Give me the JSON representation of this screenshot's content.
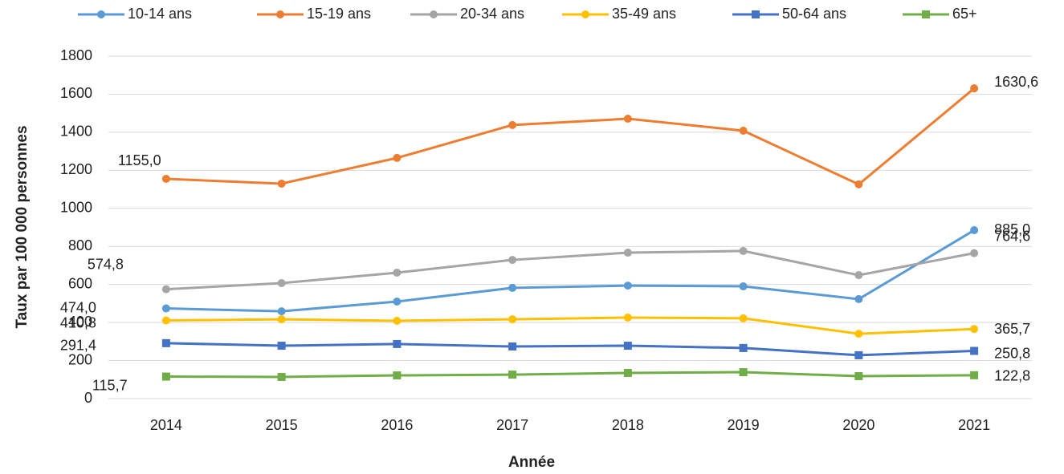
{
  "chart_data": {
    "type": "line",
    "x_label": "Année",
    "y_label": "Taux par 100 000 personnes",
    "categories": [
      "2014",
      "2015",
      "2016",
      "2017",
      "2018",
      "2019",
      "2020",
      "2021"
    ],
    "ylim": [
      0,
      1800
    ],
    "yticks": [
      0,
      200,
      400,
      600,
      800,
      1000,
      1200,
      1400,
      1600,
      1800
    ],
    "grid": true,
    "legend": "top",
    "series": [
      {
        "name": "10-14 ans",
        "color": "#5b9bd5",
        "marker": "circle",
        "values": [
          474.0,
          459,
          510,
          582,
          594,
          590,
          523,
          885.0
        ],
        "value_labels": [
          "474,0",
          null,
          null,
          null,
          null,
          null,
          null,
          "885,0"
        ]
      },
      {
        "name": "15-19 ans",
        "color": "#ed7d31",
        "marker": "circle",
        "values": [
          1155.0,
          1130,
          1265,
          1438,
          1471,
          1408,
          1126,
          1630.6
        ],
        "value_labels": [
          "1155,0",
          null,
          null,
          null,
          null,
          null,
          null,
          "1630,6"
        ]
      },
      {
        "name": "20-34 ans",
        "color": "#a5a5a5",
        "marker": "circle",
        "values": [
          574.8,
          607,
          662,
          729,
          767,
          776,
          649,
          764.6
        ],
        "value_labels": [
          "574,8",
          null,
          null,
          null,
          null,
          null,
          null,
          "764,6"
        ]
      },
      {
        "name": "35-49 ans",
        "color": "#ffc000",
        "marker": "circle",
        "values": [
          410.8,
          417,
          409,
          417,
          426,
          422,
          341,
          365.7
        ],
        "value_labels": [
          "410,8",
          null,
          null,
          null,
          null,
          null,
          null,
          "365,7"
        ]
      },
      {
        "name": "50-64 ans",
        "color": "#4472c4",
        "marker": "square",
        "values": [
          291.4,
          278,
          287,
          274,
          278,
          266,
          228,
          250.8
        ],
        "value_labels": [
          "291,4",
          null,
          null,
          null,
          null,
          null,
          null,
          "250,8"
        ]
      },
      {
        "name": "65+",
        "color": "#70ad47",
        "marker": "square",
        "values": [
          115.7,
          114,
          122,
          126,
          135,
          139,
          118,
          122.8
        ],
        "value_labels": [
          "115,7",
          null,
          null,
          null,
          null,
          null,
          null,
          "122,8"
        ]
      }
    ]
  }
}
